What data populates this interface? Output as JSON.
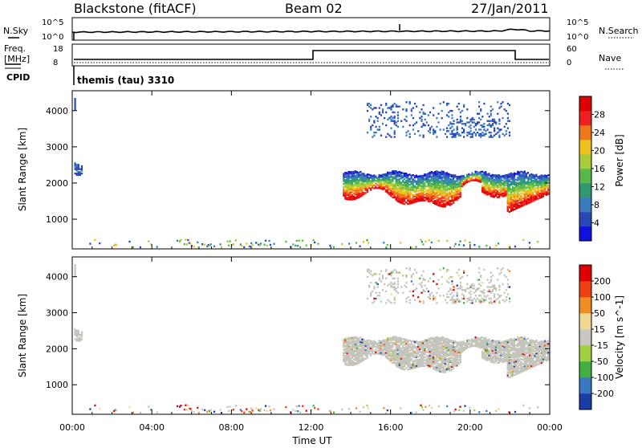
{
  "header": {
    "station": "Blackstone (fitACF)",
    "beam": "Beam 02",
    "date": "27/Jan/2011"
  },
  "status_panels": {
    "nsky_label": "N.Sky",
    "nsearch_label": "N.Search",
    "freq_label_top": "Freq.",
    "freq_label_bottom": "[MHz]",
    "nave_label": "Nave",
    "cpid_label": "CPID",
    "cpid_text": "themis (tau) 3310",
    "noise_ticks": [
      "10^5",
      "10^0"
    ],
    "noise_ticks_right": [
      "10^5",
      "10^0"
    ],
    "freq_ticks": [
      "18",
      "8"
    ],
    "nave_ticks": [
      "60",
      "0"
    ]
  },
  "x_axis": {
    "label": "Time UT",
    "ticks": [
      "00:00",
      "04:00",
      "08:00",
      "12:00",
      "16:00",
      "20:00",
      "00:00"
    ]
  },
  "colors": {
    "power_scale": [
      "#1010e0",
      "#2848b8",
      "#3a7cc0",
      "#2f9a70",
      "#58b848",
      "#a8cc38",
      "#f0c020",
      "#f07818",
      "#f02020",
      "#e00000"
    ],
    "velocity_scale": [
      "#e00000",
      "#f04010",
      "#f08c20",
      "#f0d890",
      "#c8c8c0",
      "#a0d040",
      "#40b040",
      "#3878c0",
      "#1c3ca8"
    ],
    "ground_scatter": "#c4c4bc"
  },
  "chart_data": [
    {
      "type": "heatmap",
      "name": "power",
      "xlabel": "",
      "ylabel": "Slant Range [km]",
      "xlim": [
        0,
        24
      ],
      "ylim": [
        180,
        4550
      ],
      "yticks": [
        1000,
        2000,
        3000,
        4000
      ],
      "colorbar": {
        "label": "Power [dB]",
        "ticks": [
          "4",
          "8",
          "12",
          "16",
          "20",
          "24",
          "28"
        ],
        "range": [
          0,
          32
        ]
      }
    },
    {
      "type": "heatmap",
      "name": "velocity",
      "xlabel": "Time UT",
      "ylabel": "Slant Range [km]",
      "xlim": [
        0,
        24
      ],
      "ylim": [
        180,
        4550
      ],
      "yticks": [
        1000,
        2000,
        3000,
        4000
      ],
      "colorbar": {
        "label": "Velocity [m s^-1]",
        "ticks": [
          "200",
          "100",
          "50",
          "15",
          "-15",
          "-50",
          "-100",
          "-200"
        ],
        "range": [
          -300,
          300
        ]
      }
    }
  ]
}
